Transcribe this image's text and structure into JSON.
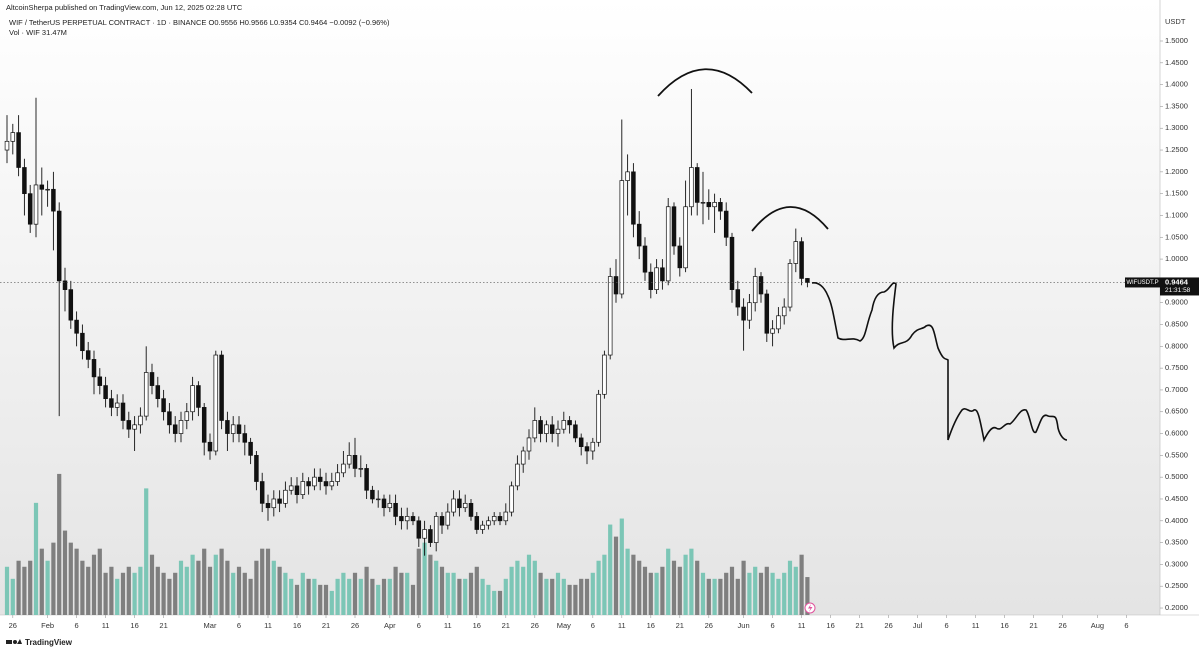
{
  "header": {
    "byline": "AltcoinSherpa published on TradingView.com, Jun 12, 2025 02:28 UTC",
    "footer": "TradingView"
  },
  "chart_data": {
    "type": "candlestick",
    "legend": "WIF / TetherUS PERPETUAL CONTRACT · 1D · BINANCE  O0.9556 H0.9566 L0.9354 C0.9464 −0.0092 (−0.96%)",
    "volume_label": "Vol · WIF  31.47M",
    "currency": "USDT",
    "symbol_tag": "WIFUSDT.P",
    "countdown": "21:31:58",
    "up_color": "#ffffff",
    "down_color": "#111111",
    "volume_up_color": "#7cc6b6",
    "volume_down_color": "#7f7f7f",
    "grid": false,
    "x": [
      "01-25",
      "01-26",
      "01-27",
      "01-28",
      "01-29",
      "01-30",
      "01-31",
      "02-01",
      "02-02",
      "02-03",
      "02-04",
      "02-05",
      "02-06",
      "02-07",
      "02-08",
      "02-09",
      "02-10",
      "02-11",
      "02-12",
      "02-13",
      "02-14",
      "02-15",
      "02-16",
      "02-17",
      "02-18",
      "02-19",
      "02-20",
      "02-21",
      "02-22",
      "02-23",
      "02-24",
      "02-25",
      "02-26",
      "02-27",
      "02-28",
      "03-01",
      "03-02",
      "03-03",
      "03-04",
      "03-05",
      "03-06",
      "03-07",
      "03-08",
      "03-09",
      "03-10",
      "03-11",
      "03-12",
      "03-13",
      "03-14",
      "03-15",
      "03-16",
      "03-17",
      "03-18",
      "03-19",
      "03-20",
      "03-21",
      "03-22",
      "03-23",
      "03-24",
      "03-25",
      "03-26",
      "03-27",
      "03-28",
      "03-29",
      "03-30",
      "03-31",
      "04-01",
      "04-02",
      "04-03",
      "04-04",
      "04-05",
      "04-06",
      "04-07",
      "04-08",
      "04-09",
      "04-10",
      "04-11",
      "04-12",
      "04-13",
      "04-14",
      "04-15",
      "04-16",
      "04-17",
      "04-18",
      "04-19",
      "04-20",
      "04-21",
      "04-22",
      "04-23",
      "04-24",
      "04-25",
      "04-26",
      "04-27",
      "04-28",
      "04-29",
      "04-30",
      "05-01",
      "05-02",
      "05-03",
      "05-04",
      "05-05",
      "05-06",
      "05-07",
      "05-08",
      "05-09",
      "05-10",
      "05-11",
      "05-12",
      "05-13",
      "05-14",
      "05-15",
      "05-16",
      "05-17",
      "05-18",
      "05-19",
      "05-20",
      "05-21",
      "05-22",
      "05-23",
      "05-24",
      "05-25",
      "05-26",
      "05-27",
      "05-28",
      "05-29",
      "05-30",
      "05-31",
      "06-01",
      "06-02",
      "06-03",
      "06-04",
      "06-05",
      "06-06",
      "06-07",
      "06-08",
      "06-09",
      "06-10",
      "06-11",
      "06-12"
    ],
    "open": [
      1.25,
      1.27,
      1.29,
      1.21,
      1.15,
      1.08,
      1.17,
      1.16,
      1.16,
      1.11,
      0.95,
      0.93,
      0.86,
      0.83,
      0.79,
      0.77,
      0.73,
      0.71,
      0.68,
      0.66,
      0.67,
      0.63,
      0.61,
      0.62,
      0.64,
      0.74,
      0.71,
      0.68,
      0.65,
      0.62,
      0.6,
      0.63,
      0.65,
      0.71,
      0.66,
      0.58,
      0.56,
      0.78,
      0.63,
      0.6,
      0.62,
      0.6,
      0.58,
      0.55,
      0.49,
      0.44,
      0.43,
      0.45,
      0.44,
      0.47,
      0.48,
      0.46,
      0.49,
      0.48,
      0.5,
      0.49,
      0.48,
      0.49,
      0.51,
      0.53,
      0.55,
      0.52,
      0.52,
      0.47,
      0.45,
      0.45,
      0.43,
      0.44,
      0.41,
      0.4,
      0.41,
      0.4,
      0.36,
      0.38,
      0.35,
      0.41,
      0.39,
      0.42,
      0.45,
      0.43,
      0.44,
      0.41,
      0.38,
      0.39,
      0.4,
      0.41,
      0.4,
      0.42,
      0.48,
      0.53,
      0.56,
      0.59,
      0.63,
      0.6,
      0.62,
      0.6,
      0.61,
      0.63,
      0.62,
      0.59,
      0.57,
      0.56,
      0.58,
      0.69,
      0.78,
      0.96,
      0.92,
      1.18,
      1.2,
      1.08,
      1.03,
      0.97,
      0.93,
      0.98,
      0.95,
      1.12,
      1.03,
      0.98,
      1.12,
      1.21,
      1.13,
      1.13,
      1.12,
      1.13,
      1.11,
      1.05,
      0.93,
      0.89,
      0.86,
      0.9,
      0.96,
      0.92,
      0.83,
      0.84,
      0.87,
      0.89,
      0.99,
      1.04,
      0.9556
    ],
    "high": [
      1.33,
      1.31,
      1.33,
      1.23,
      1.17,
      1.37,
      1.21,
      1.18,
      1.2,
      1.13,
      0.98,
      0.95,
      0.88,
      0.85,
      0.81,
      0.79,
      0.75,
      0.73,
      0.7,
      0.69,
      0.69,
      0.65,
      0.64,
      0.66,
      0.8,
      0.76,
      0.73,
      0.7,
      0.67,
      0.64,
      0.65,
      0.67,
      0.73,
      0.72,
      0.67,
      0.6,
      0.79,
      0.79,
      0.65,
      0.64,
      0.64,
      0.62,
      0.59,
      0.56,
      0.51,
      0.46,
      0.47,
      0.47,
      0.49,
      0.5,
      0.5,
      0.51,
      0.5,
      0.52,
      0.52,
      0.51,
      0.51,
      0.53,
      0.56,
      0.58,
      0.59,
      0.55,
      0.53,
      0.48,
      0.47,
      0.46,
      0.46,
      0.46,
      0.43,
      0.43,
      0.42,
      0.41,
      0.4,
      0.39,
      0.42,
      0.42,
      0.44,
      0.47,
      0.47,
      0.46,
      0.45,
      0.42,
      0.4,
      0.41,
      0.42,
      0.42,
      0.44,
      0.49,
      0.55,
      0.57,
      0.61,
      0.66,
      0.64,
      0.63,
      0.64,
      0.63,
      0.65,
      0.64,
      0.63,
      0.6,
      0.58,
      0.59,
      0.7,
      0.79,
      0.98,
      1.0,
      1.32,
      1.24,
      1.22,
      1.11,
      1.05,
      0.99,
      1.0,
      1.0,
      1.14,
      1.13,
      1.05,
      1.18,
      1.39,
      1.22,
      1.2,
      1.16,
      1.15,
      1.14,
      1.13,
      1.06,
      0.95,
      0.91,
      0.92,
      0.98,
      0.97,
      0.93,
      0.86,
      0.89,
      0.91,
      1.0,
      1.07,
      1.05,
      0.9566
    ],
    "low": [
      1.22,
      1.24,
      1.19,
      1.1,
      1.06,
      1.05,
      1.1,
      1.12,
      1.02,
      0.64,
      0.88,
      0.84,
      0.8,
      0.77,
      0.75,
      0.69,
      0.69,
      0.66,
      0.64,
      0.64,
      0.61,
      0.59,
      0.56,
      0.6,
      0.63,
      0.69,
      0.66,
      0.63,
      0.6,
      0.58,
      0.58,
      0.61,
      0.63,
      0.64,
      0.55,
      0.54,
      0.55,
      0.61,
      0.56,
      0.58,
      0.58,
      0.55,
      0.53,
      0.47,
      0.42,
      0.4,
      0.41,
      0.42,
      0.43,
      0.46,
      0.44,
      0.45,
      0.46,
      0.47,
      0.47,
      0.46,
      0.47,
      0.48,
      0.5,
      0.52,
      0.5,
      0.5,
      0.45,
      0.44,
      0.43,
      0.41,
      0.42,
      0.39,
      0.38,
      0.38,
      0.39,
      0.34,
      0.32,
      0.34,
      0.33,
      0.37,
      0.38,
      0.41,
      0.41,
      0.42,
      0.4,
      0.37,
      0.37,
      0.38,
      0.39,
      0.39,
      0.39,
      0.41,
      0.47,
      0.51,
      0.54,
      0.58,
      0.58,
      0.58,
      0.58,
      0.57,
      0.6,
      0.6,
      0.58,
      0.55,
      0.53,
      0.54,
      0.57,
      0.68,
      0.77,
      0.9,
      0.91,
      1.1,
      1.05,
      1.0,
      0.95,
      0.91,
      0.92,
      0.93,
      0.94,
      1.01,
      0.96,
      0.97,
      1.1,
      1.1,
      1.08,
      1.09,
      1.06,
      1.09,
      1.03,
      0.9,
      0.87,
      0.79,
      0.84,
      0.88,
      0.9,
      0.81,
      0.8,
      0.83,
      0.85,
      0.88,
      0.97,
      0.94,
      0.9354
    ],
    "close": [
      1.27,
      1.29,
      1.21,
      1.15,
      1.08,
      1.17,
      1.16,
      1.16,
      1.11,
      0.95,
      0.93,
      0.86,
      0.83,
      0.79,
      0.77,
      0.73,
      0.71,
      0.68,
      0.66,
      0.67,
      0.63,
      0.61,
      0.62,
      0.64,
      0.74,
      0.71,
      0.68,
      0.65,
      0.62,
      0.6,
      0.63,
      0.65,
      0.71,
      0.66,
      0.58,
      0.56,
      0.78,
      0.63,
      0.6,
      0.62,
      0.6,
      0.58,
      0.55,
      0.49,
      0.44,
      0.43,
      0.45,
      0.44,
      0.47,
      0.48,
      0.46,
      0.49,
      0.48,
      0.5,
      0.49,
      0.48,
      0.49,
      0.51,
      0.53,
      0.55,
      0.52,
      0.52,
      0.47,
      0.45,
      0.45,
      0.43,
      0.44,
      0.41,
      0.4,
      0.41,
      0.4,
      0.36,
      0.38,
      0.35,
      0.41,
      0.39,
      0.42,
      0.45,
      0.43,
      0.44,
      0.41,
      0.38,
      0.39,
      0.4,
      0.41,
      0.4,
      0.42,
      0.48,
      0.53,
      0.56,
      0.59,
      0.63,
      0.6,
      0.62,
      0.6,
      0.61,
      0.63,
      0.62,
      0.59,
      0.57,
      0.56,
      0.58,
      0.69,
      0.78,
      0.96,
      0.92,
      1.18,
      1.2,
      1.08,
      1.03,
      0.97,
      0.93,
      0.98,
      0.95,
      1.12,
      1.03,
      0.98,
      1.12,
      1.21,
      1.13,
      1.13,
      1.12,
      1.13,
      1.11,
      1.05,
      0.93,
      0.89,
      0.86,
      0.9,
      0.96,
      0.92,
      0.83,
      0.84,
      0.87,
      0.89,
      0.99,
      1.04,
      0.9556,
      0.9464
    ],
    "volume": [
      40,
      30,
      45,
      40,
      45,
      93,
      55,
      45,
      60,
      117,
      70,
      60,
      55,
      45,
      40,
      50,
      55,
      35,
      40,
      30,
      35,
      40,
      35,
      40,
      105,
      50,
      40,
      35,
      30,
      35,
      45,
      40,
      50,
      45,
      55,
      40,
      50,
      55,
      45,
      35,
      40,
      35,
      30,
      45,
      55,
      55,
      45,
      40,
      35,
      30,
      25,
      35,
      30,
      30,
      25,
      25,
      20,
      30,
      35,
      30,
      35,
      30,
      40,
      30,
      25,
      30,
      30,
      40,
      35,
      35,
      25,
      55,
      60,
      50,
      45,
      40,
      35,
      35,
      30,
      30,
      35,
      40,
      30,
      25,
      20,
      20,
      30,
      40,
      45,
      40,
      50,
      45,
      35,
      30,
      30,
      35,
      30,
      25,
      25,
      30,
      30,
      35,
      45,
      50,
      75,
      65,
      80,
      55,
      50,
      45,
      40,
      35,
      35,
      40,
      55,
      45,
      40,
      50,
      55,
      45,
      35,
      30,
      30,
      30,
      35,
      40,
      30,
      45,
      35,
      40,
      35,
      40,
      35,
      30,
      35,
      45,
      40,
      50,
      31.47
    ],
    "xlim": [
      "01-24",
      "08-11"
    ],
    "xticks": [
      {
        "value": "01-26",
        "label": "26"
      },
      {
        "value": "02-01",
        "label": "Feb"
      },
      {
        "value": "02-06",
        "label": "6"
      },
      {
        "value": "02-11",
        "label": "11"
      },
      {
        "value": "02-16",
        "label": "16"
      },
      {
        "value": "02-21",
        "label": "21"
      },
      {
        "value": "03-01",
        "label": "Mar"
      },
      {
        "value": "03-06",
        "label": "6"
      },
      {
        "value": "03-11",
        "label": "11"
      },
      {
        "value": "03-16",
        "label": "16"
      },
      {
        "value": "03-21",
        "label": "21"
      },
      {
        "value": "03-26",
        "label": "26"
      },
      {
        "value": "04-01",
        "label": "Apr"
      },
      {
        "value": "04-06",
        "label": "6"
      },
      {
        "value": "04-11",
        "label": "11"
      },
      {
        "value": "04-16",
        "label": "16"
      },
      {
        "value": "04-21",
        "label": "21"
      },
      {
        "value": "04-26",
        "label": "26"
      },
      {
        "value": "05-01",
        "label": "May"
      },
      {
        "value": "05-06",
        "label": "6"
      },
      {
        "value": "05-11",
        "label": "11"
      },
      {
        "value": "05-16",
        "label": "16"
      },
      {
        "value": "05-21",
        "label": "21"
      },
      {
        "value": "05-26",
        "label": "26"
      },
      {
        "value": "06-01",
        "label": "Jun"
      },
      {
        "value": "06-06",
        "label": "6"
      },
      {
        "value": "06-11",
        "label": "11"
      },
      {
        "value": "06-16",
        "label": "16"
      },
      {
        "value": "06-21",
        "label": "21"
      },
      {
        "value": "06-26",
        "label": "26"
      },
      {
        "value": "07-01",
        "label": "Jul"
      },
      {
        "value": "07-06",
        "label": "6"
      },
      {
        "value": "07-11",
        "label": "11"
      },
      {
        "value": "07-16",
        "label": "16"
      },
      {
        "value": "07-21",
        "label": "21"
      },
      {
        "value": "07-26",
        "label": "26"
      },
      {
        "value": "08-01",
        "label": "Aug"
      },
      {
        "value": "08-06",
        "label": "6"
      }
    ],
    "ylim": [
      0.184,
      1.594
    ],
    "yticks": [
      {
        "value": 0.2,
        "label": "0.2000"
      },
      {
        "value": 0.25,
        "label": "0.2500"
      },
      {
        "value": 0.3,
        "label": "0.3000"
      },
      {
        "value": 0.35,
        "label": "0.3500"
      },
      {
        "value": 0.4,
        "label": "0.4000"
      },
      {
        "value": 0.45,
        "label": "0.4500"
      },
      {
        "value": 0.5,
        "label": "0.5000"
      },
      {
        "value": 0.55,
        "label": "0.5500"
      },
      {
        "value": 0.6,
        "label": "0.6000"
      },
      {
        "value": 0.65,
        "label": "0.6500"
      },
      {
        "value": 0.7,
        "label": "0.7000"
      },
      {
        "value": 0.75,
        "label": "0.7500"
      },
      {
        "value": 0.8,
        "label": "0.8000"
      },
      {
        "value": 0.85,
        "label": "0.8500"
      },
      {
        "value": 0.9,
        "label": "0.9000"
      },
      {
        "value": 0.95,
        "label": "0.9500"
      },
      {
        "value": 1.0,
        "label": "1.0000"
      },
      {
        "value": 1.05,
        "label": "1.0500"
      },
      {
        "value": 1.1,
        "label": "1.1000"
      },
      {
        "value": 1.15,
        "label": "1.1500"
      },
      {
        "value": 1.2,
        "label": "1.2000"
      },
      {
        "value": 1.25,
        "label": "1.2500"
      },
      {
        "value": 1.3,
        "label": "1.3000"
      },
      {
        "value": 1.35,
        "label": "1.3500"
      },
      {
        "value": 1.4,
        "label": "1.4000"
      },
      {
        "value": 1.45,
        "label": "1.4500"
      },
      {
        "value": 1.5,
        "label": "1.5000"
      }
    ],
    "volume_ylim": [
      0,
      510
    ]
  }
}
